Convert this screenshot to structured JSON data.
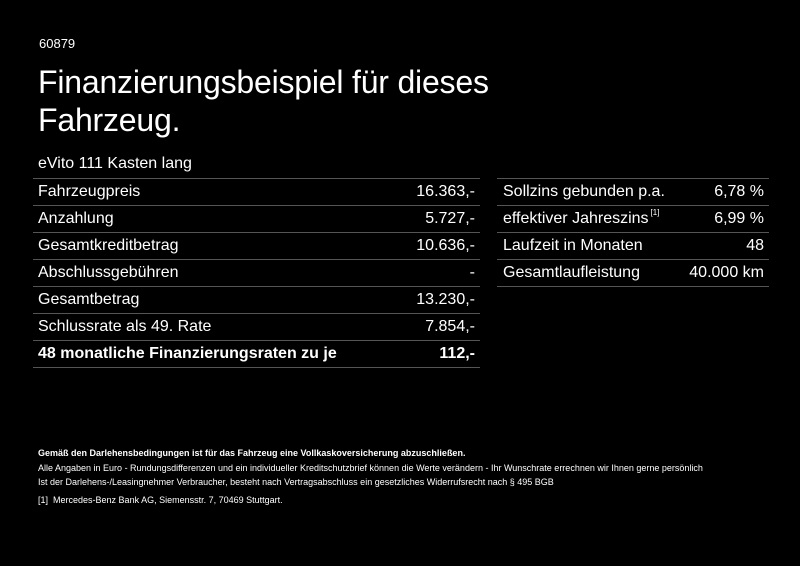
{
  "header": {
    "id": "60879",
    "title_line1": "Finanzierungsbeispiel für dieses",
    "title_line2": "Fahrzeug.",
    "model": "eVito 111 Kasten lang"
  },
  "left_table": [
    {
      "label": "Fahrzeugpreis",
      "value": "16.363,-"
    },
    {
      "label": "Anzahlung",
      "value": "5.727,-"
    },
    {
      "label": "Gesamtkreditbetrag",
      "value": "10.636,-"
    },
    {
      "label": "Abschlussgebühren",
      "value": "-"
    },
    {
      "label": "Gesamtbetrag",
      "value": "13.230,-"
    },
    {
      "label": "Schlussrate als 49. Rate",
      "value": "7.854,-"
    },
    {
      "label": "48 monatliche Finanzierungsraten zu je",
      "value": "112,-"
    }
  ],
  "right_table": [
    {
      "label": "Sollzins gebunden p.a.",
      "value": "6,78 %"
    },
    {
      "label": "effektiver Jahreszins",
      "sup": "[1]",
      "value": "6,99 %"
    },
    {
      "label": "Laufzeit in Monaten",
      "value": "48"
    },
    {
      "label": "Gesamtlaufleistung",
      "value": "40.000 km"
    }
  ],
  "footer": {
    "bold_note": "Gemäß den Darlehensbedingungen ist für das Fahrzeug eine Vollkaskoversicherung abzuschließen.",
    "line1": "Alle Angaben in Euro - Rundungsdifferenzen und ein individueller Kreditschutzbrief können die Werte verändern - Ihr Wunschrate errechnen wir Ihnen gerne persönlich",
    "line2": "Ist der Darlehens-/Leasingnehmer Verbraucher, besteht nach Vertragsabschluss ein gesetzliches Widerrufsrecht nach § 495 BGB",
    "footnote_mark": "[1]",
    "footnote": "Mercedes-Benz Bank AG, Siemensstr. 7, 70469 Stuttgart."
  },
  "colors": {
    "background": "#000000",
    "text": "#ffffff",
    "rule": "#555555"
  }
}
